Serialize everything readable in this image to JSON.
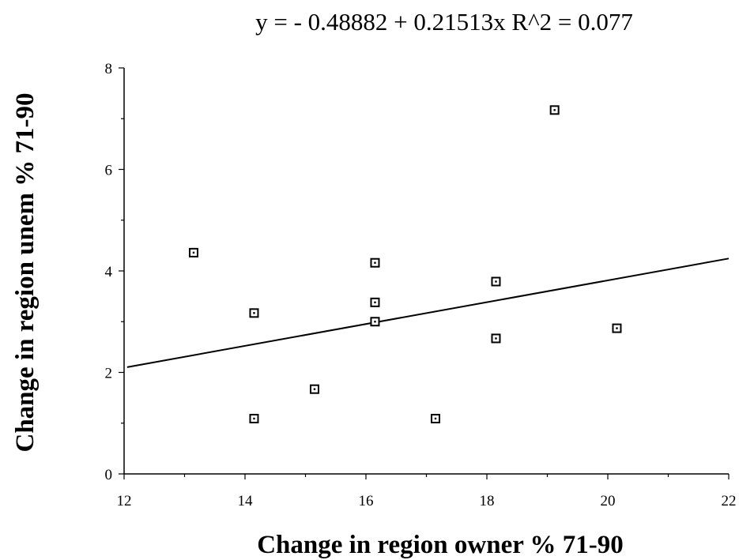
{
  "chart_data": {
    "type": "scatter",
    "title": "y =  - 0.48882 + 0.21513x   R^2 = 0.077",
    "xlabel": "Change in region owner % 71-90",
    "ylabel": "Change in region unem %  71-90",
    "xlim": [
      12,
      22
    ],
    "ylim": [
      0,
      8
    ],
    "x_ticks": [
      12,
      14,
      16,
      18,
      20,
      22
    ],
    "y_ticks": [
      0,
      2,
      4,
      6,
      8
    ],
    "grid": false,
    "marker": "dotted-square",
    "points": [
      {
        "x": 13.15,
        "y": 4.36
      },
      {
        "x": 14.15,
        "y": 3.17
      },
      {
        "x": 14.15,
        "y": 1.09
      },
      {
        "x": 15.15,
        "y": 1.67
      },
      {
        "x": 16.15,
        "y": 4.16
      },
      {
        "x": 16.15,
        "y": 3.38
      },
      {
        "x": 16.15,
        "y": 3.0
      },
      {
        "x": 17.15,
        "y": 1.09
      },
      {
        "x": 18.15,
        "y": 3.79
      },
      {
        "x": 18.15,
        "y": 2.67
      },
      {
        "x": 19.12,
        "y": 7.17
      },
      {
        "x": 20.15,
        "y": 2.87
      }
    ],
    "fit": {
      "intercept": -0.48882,
      "slope": 0.21513,
      "x_range": [
        12.05,
        22
      ]
    }
  }
}
